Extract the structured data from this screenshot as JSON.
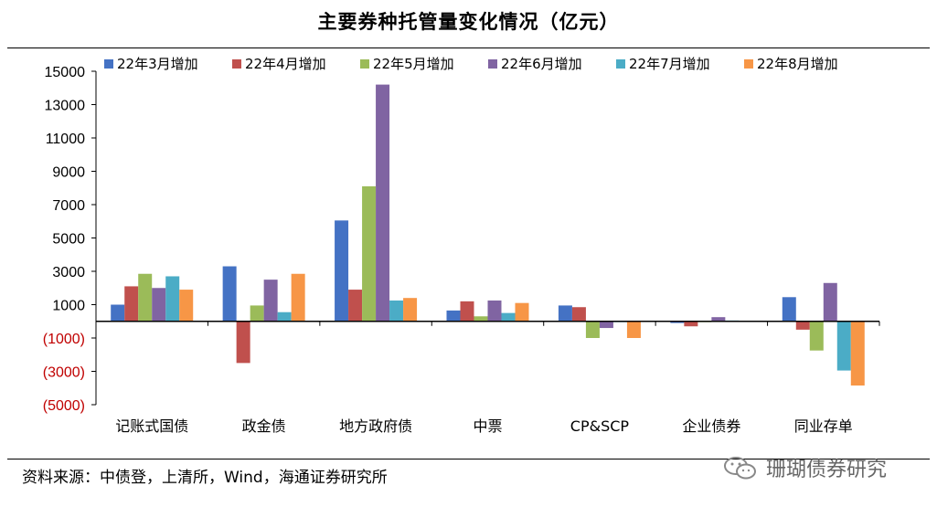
{
  "page": {
    "title": "主要券种托管量变化情况（亿元）",
    "source": "资料来源：中债登，上清所，Wind，海通证券研究所",
    "watermark": "珊瑚债券研究"
  },
  "chart_data": {
    "type": "bar",
    "title": "主要券种托管量变化情况（亿元）",
    "xlabel": "",
    "ylabel": "",
    "ylim": [
      -5000,
      15000
    ],
    "yticks": [
      15000,
      13000,
      11000,
      9000,
      7000,
      5000,
      3000,
      1000,
      -1000,
      -3000,
      -5000
    ],
    "ytick_labels": [
      "15000",
      "13000",
      "11000",
      "9000",
      "7000",
      "5000",
      "3000",
      "1000",
      "(1000)",
      "(3000)",
      "(5000)"
    ],
    "grid": false,
    "legend_position": "top",
    "categories": [
      "记账式国债",
      "政金债",
      "地方政府债",
      "中票",
      "CP&SCP",
      "企业债券",
      "同业存单"
    ],
    "series": [
      {
        "name": "22年3月增加",
        "color": "#4472C4",
        "values": [
          1000,
          3300,
          6050,
          650,
          950,
          -100,
          1450
        ]
      },
      {
        "name": "22年4月增加",
        "color": "#C0504D",
        "values": [
          2100,
          -2500,
          1900,
          1200,
          850,
          -300,
          -500
        ]
      },
      {
        "name": "22年5月增加",
        "color": "#9BBB59",
        "values": [
          2850,
          950,
          8100,
          300,
          -1000,
          -50,
          -1750
        ]
      },
      {
        "name": "22年6月增加",
        "color": "#8064A2",
        "values": [
          2000,
          2500,
          14200,
          1250,
          -400,
          250,
          2300
        ]
      },
      {
        "name": "22年7月增加",
        "color": "#4BACC6",
        "values": [
          2700,
          550,
          1250,
          500,
          -50,
          50,
          -2950
        ]
      },
      {
        "name": "22年8月增加",
        "color": "#F79646",
        "values": [
          1900,
          2850,
          1400,
          1100,
          -1000,
          0,
          -3850
        ]
      }
    ]
  }
}
